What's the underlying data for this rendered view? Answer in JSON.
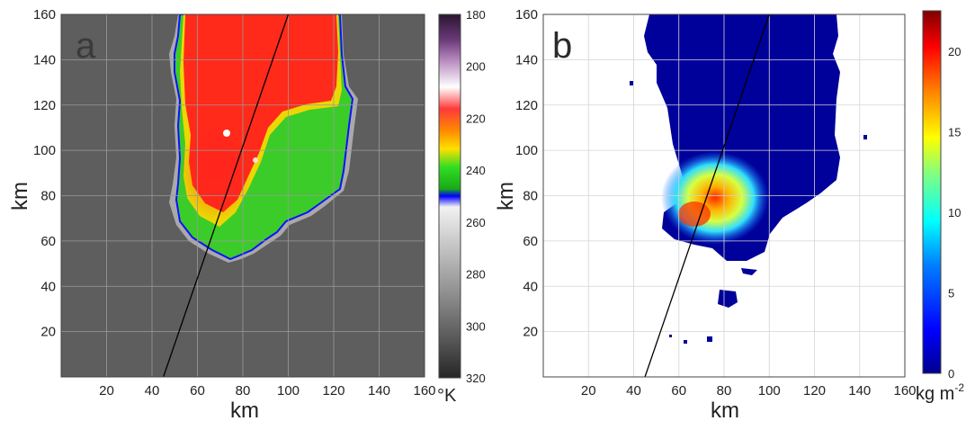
{
  "chart_data": [
    {
      "type": "heatmap",
      "panel_label": "a",
      "xlabel": "km",
      "ylabel": "km",
      "xlim": [
        0,
        160
      ],
      "ylim": [
        0,
        160
      ],
      "xticks": [
        20,
        40,
        60,
        80,
        100,
        120,
        140,
        160
      ],
      "yticks": [
        20,
        40,
        60,
        80,
        100,
        120,
        140,
        160
      ],
      "grid": true,
      "colorbar": {
        "ticks": [
          180,
          200,
          220,
          240,
          260,
          280,
          300,
          320
        ],
        "range": [
          180,
          320
        ],
        "unit": "°K",
        "reversed": true,
        "colors": [
          "#2a1530",
          "#6a3a78",
          "#b080b8",
          "#ffffff",
          "#ff3a3a",
          "#ff8a00",
          "#ffe000",
          "#33dd22",
          "#18aa18",
          "#0000ff",
          "#f2f2f2",
          "#c0c0c0",
          "#8a8a8a",
          "#555555",
          "#262626"
        ]
      },
      "line": {
        "x": [
          45,
          100
        ],
        "y": [
          0,
          160
        ]
      }
    },
    {
      "type": "heatmap",
      "panel_label": "b",
      "xlabel": "km",
      "ylabel": "km",
      "xlim": [
        0,
        160
      ],
      "ylim": [
        0,
        160
      ],
      "xticks": [
        20,
        40,
        60,
        80,
        100,
        120,
        140,
        160
      ],
      "yticks": [
        20,
        40,
        60,
        80,
        100,
        120,
        140,
        160
      ],
      "grid": true,
      "colorbar": {
        "ticks": [
          0,
          5,
          10,
          15,
          20
        ],
        "range": [
          0,
          22.5
        ],
        "unit": "kg m",
        "unit_superscript": "-2",
        "colors": [
          "#00008f",
          "#0000ff",
          "#0080ff",
          "#00ffff",
          "#80ff80",
          "#ffff00",
          "#ff8000",
          "#ff0000",
          "#800000"
        ]
      },
      "line": {
        "x": [
          45,
          100
        ],
        "y": [
          0,
          160
        ]
      }
    }
  ]
}
